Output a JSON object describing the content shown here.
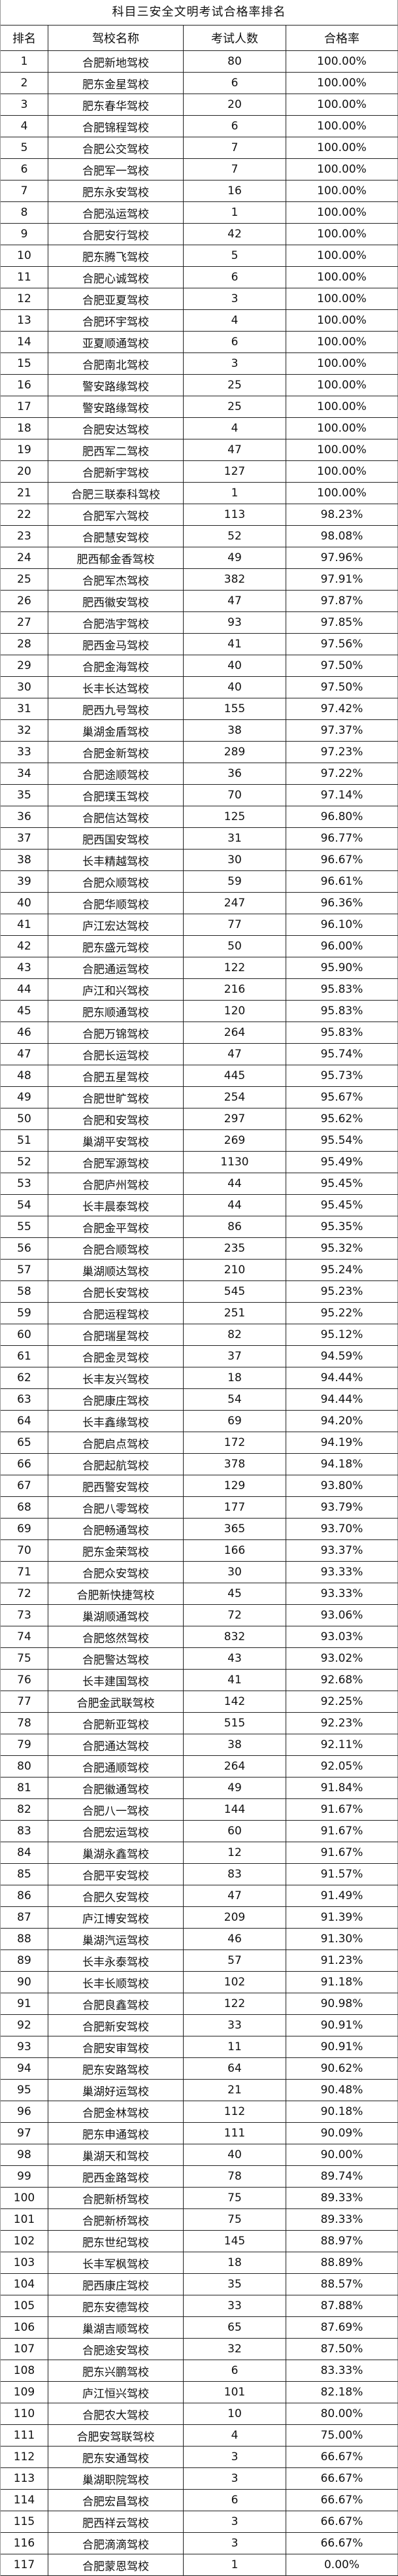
{
  "title": "科目三安全文明考试合格率排名",
  "headers": [
    "排名",
    "驾校名称",
    "考试人数",
    "合格率"
  ],
  "rows": [
    [
      "1",
      "合肥新地驾校",
      "80",
      "100.00%"
    ],
    [
      "2",
      "肥东金星驾校",
      "6",
      "100.00%"
    ],
    [
      "3",
      "肥东春华驾校",
      "20",
      "100.00%"
    ],
    [
      "4",
      "合肥锦程驾校",
      "6",
      "100.00%"
    ],
    [
      "5",
      "合肥公交驾校",
      "7",
      "100.00%"
    ],
    [
      "6",
      "合肥军一驾校",
      "7",
      "100.00%"
    ],
    [
      "7",
      "肥东永安驾校",
      "16",
      "100.00%"
    ],
    [
      "8",
      "合肥泓运驾校",
      "1",
      "100.00%"
    ],
    [
      "9",
      "合肥安行驾校",
      "42",
      "100.00%"
    ],
    [
      "10",
      "肥东腾飞驾校",
      "5",
      "100.00%"
    ],
    [
      "11",
      "合肥心诚驾校",
      "6",
      "100.00%"
    ],
    [
      "12",
      "合肥亚夏驾校",
      "3",
      "100.00%"
    ],
    [
      "13",
      "合肥环宇驾校",
      "4",
      "100.00%"
    ],
    [
      "14",
      "亚夏顺通驾校",
      "6",
      "100.00%"
    ],
    [
      "15",
      "合肥南北驾校",
      "3",
      "100.00%"
    ],
    [
      "16",
      "警安路缘驾校",
      "25",
      "100.00%"
    ],
    [
      "17",
      "警安路缘驾校",
      "25",
      "100.00%"
    ],
    [
      "18",
      "合肥安达驾校",
      "4",
      "100.00%"
    ],
    [
      "19",
      "肥西军二驾校",
      "47",
      "100.00%"
    ],
    [
      "20",
      "合肥新宇驾校",
      "127",
      "100.00%"
    ],
    [
      "21",
      "合肥三联泰科驾校",
      "1",
      "100.00%"
    ],
    [
      "22",
      "合肥军六驾校",
      "113",
      "98.23%"
    ],
    [
      "23",
      "合肥慧安驾校",
      "52",
      "98.08%"
    ],
    [
      "24",
      "肥西郁金香驾校",
      "49",
      "97.96%"
    ],
    [
      "25",
      "合肥军杰驾校",
      "382",
      "97.91%"
    ],
    [
      "26",
      "肥西徽安驾校",
      "47",
      "97.87%"
    ],
    [
      "27",
      "合肥浩宇驾校",
      "93",
      "97.85%"
    ],
    [
      "28",
      "肥西金马驾校",
      "41",
      "97.56%"
    ],
    [
      "29",
      "合肥金海驾校",
      "40",
      "97.50%"
    ],
    [
      "30",
      "长丰长达驾校",
      "40",
      "97.50%"
    ],
    [
      "31",
      "肥西九号驾校",
      "155",
      "97.42%"
    ],
    [
      "32",
      "巢湖金盾驾校",
      "38",
      "97.37%"
    ],
    [
      "33",
      "合肥金新驾校",
      "289",
      "97.23%"
    ],
    [
      "34",
      "合肥途顺驾校",
      "36",
      "97.22%"
    ],
    [
      "35",
      "合肥璞玉驾校",
      "70",
      "97.14%"
    ],
    [
      "36",
      "合肥信达驾校",
      "125",
      "96.80%"
    ],
    [
      "37",
      "肥西国安驾校",
      "31",
      "96.77%"
    ],
    [
      "38",
      "长丰精越驾校",
      "30",
      "96.67%"
    ],
    [
      "39",
      "合肥众顺驾校",
      "59",
      "96.61%"
    ],
    [
      "40",
      "合肥华顺驾校",
      "247",
      "96.36%"
    ],
    [
      "41",
      "庐江宏达驾校",
      "77",
      "96.10%"
    ],
    [
      "42",
      "肥东盛元驾校",
      "50",
      "96.00%"
    ],
    [
      "43",
      "合肥通运驾校",
      "122",
      "95.90%"
    ],
    [
      "44",
      "庐江和兴驾校",
      "216",
      "95.83%"
    ],
    [
      "45",
      "肥东顺通驾校",
      "120",
      "95.83%"
    ],
    [
      "46",
      "合肥万锦驾校",
      "264",
      "95.83%"
    ],
    [
      "47",
      "合肥长运驾校",
      "47",
      "95.74%"
    ],
    [
      "48",
      "合肥五星驾校",
      "445",
      "95.73%"
    ],
    [
      "49",
      "合肥世旷驾校",
      "254",
      "95.67%"
    ],
    [
      "50",
      "合肥和安驾校",
      "297",
      "95.62%"
    ],
    [
      "51",
      "巢湖平安驾校",
      "269",
      "95.54%"
    ],
    [
      "52",
      "合肥军源驾校",
      "1130",
      "95.49%"
    ],
    [
      "53",
      "合肥庐州驾校",
      "44",
      "95.45%"
    ],
    [
      "54",
      "长丰晨泰驾校",
      "44",
      "95.45%"
    ],
    [
      "55",
      "合肥金平驾校",
      "86",
      "95.35%"
    ],
    [
      "56",
      "合肥合顺驾校",
      "235",
      "95.32%"
    ],
    [
      "57",
      "巢湖顺达驾校",
      "210",
      "95.24%"
    ],
    [
      "58",
      "合肥长安驾校",
      "545",
      "95.23%"
    ],
    [
      "59",
      "合肥运程驾校",
      "251",
      "95.22%"
    ],
    [
      "60",
      "合肥瑞星驾校",
      "82",
      "95.12%"
    ],
    [
      "61",
      "合肥金灵驾校",
      "37",
      "94.59%"
    ],
    [
      "62",
      "长丰友兴驾校",
      "18",
      "94.44%"
    ],
    [
      "63",
      "合肥康庄驾校",
      "54",
      "94.44%"
    ],
    [
      "64",
      "长丰鑫缘驾校",
      "69",
      "94.20%"
    ],
    [
      "65",
      "合肥启点驾校",
      "172",
      "94.19%"
    ],
    [
      "66",
      "合肥起航驾校",
      "378",
      "94.18%"
    ],
    [
      "67",
      "肥西警安驾校",
      "129",
      "93.80%"
    ],
    [
      "68",
      "合肥八零驾校",
      "177",
      "93.79%"
    ],
    [
      "69",
      "合肥畅通驾校",
      "365",
      "93.70%"
    ],
    [
      "70",
      "肥东金荣驾校",
      "166",
      "93.37%"
    ],
    [
      "71",
      "合肥众安驾校",
      "30",
      "93.33%"
    ],
    [
      "72",
      "合肥新快捷驾校",
      "45",
      "93.33%"
    ],
    [
      "73",
      "巢湖顺通驾校",
      "72",
      "93.06%"
    ],
    [
      "74",
      "合肥悠然驾校",
      "832",
      "93.03%"
    ],
    [
      "75",
      "合肥警达驾校",
      "43",
      "93.02%"
    ],
    [
      "76",
      "长丰建国驾校",
      "41",
      "92.68%"
    ],
    [
      "77",
      "合肥金武联驾校",
      "142",
      "92.25%"
    ],
    [
      "78",
      "合肥新亚驾校",
      "515",
      "92.23%"
    ],
    [
      "79",
      "合肥通达驾校",
      "38",
      "92.11%"
    ],
    [
      "80",
      "合肥通顺驾校",
      "264",
      "92.05%"
    ],
    [
      "81",
      "合肥徽通驾校",
      "49",
      "91.84%"
    ],
    [
      "82",
      "合肥八一驾校",
      "144",
      "91.67%"
    ],
    [
      "83",
      "合肥宏运驾校",
      "60",
      "91.67%"
    ],
    [
      "84",
      "巢湖永鑫驾校",
      "12",
      "91.67%"
    ],
    [
      "85",
      "合肥平安驾校",
      "83",
      "91.57%"
    ],
    [
      "86",
      "合肥久安驾校",
      "47",
      "91.49%"
    ],
    [
      "87",
      "庐江博安驾校",
      "209",
      "91.39%"
    ],
    [
      "88",
      "巢湖汽运驾校",
      "46",
      "91.30%"
    ],
    [
      "89",
      "长丰永泰驾校",
      "57",
      "91.23%"
    ],
    [
      "90",
      "长丰长顺驾校",
      "102",
      "91.18%"
    ],
    [
      "91",
      "合肥良鑫驾校",
      "122",
      "90.98%"
    ],
    [
      "92",
      "合肥新安驾校",
      "33",
      "90.91%"
    ],
    [
      "93",
      "合肥安审驾校",
      "11",
      "90.91%"
    ],
    [
      "94",
      "肥东安路驾校",
      "64",
      "90.62%"
    ],
    [
      "95",
      "巢湖好运驾校",
      "21",
      "90.48%"
    ],
    [
      "96",
      "合肥金林驾校",
      "112",
      "90.18%"
    ],
    [
      "97",
      "肥东申通驾校",
      "111",
      "90.09%"
    ],
    [
      "98",
      "巢湖天和驾校",
      "40",
      "90.00%"
    ],
    [
      "99",
      "肥西金路驾校",
      "78",
      "89.74%"
    ],
    [
      "100",
      "合肥新桥驾校",
      "75",
      "89.33%"
    ],
    [
      "101",
      "合肥新桥驾校",
      "75",
      "89.33%"
    ],
    [
      "102",
      "肥东世纪驾校",
      "145",
      "88.97%"
    ],
    [
      "103",
      "长丰军枫驾校",
      "18",
      "88.89%"
    ],
    [
      "104",
      "肥西康庄驾校",
      "35",
      "88.57%"
    ],
    [
      "105",
      "肥东安德驾校",
      "33",
      "87.88%"
    ],
    [
      "106",
      "巢湖吉顺驾校",
      "65",
      "87.69%"
    ],
    [
      "107",
      "合肥途安驾校",
      "32",
      "87.50%"
    ],
    [
      "108",
      "肥东兴鹏驾校",
      "6",
      "83.33%"
    ],
    [
      "109",
      "庐江恒兴驾校",
      "101",
      "82.18%"
    ],
    [
      "110",
      "合肥农大驾校",
      "10",
      "80.00%"
    ],
    [
      "111",
      "合肥安驾联驾校",
      "4",
      "75.00%"
    ],
    [
      "112",
      "肥东安通驾校",
      "3",
      "66.67%"
    ],
    [
      "113",
      "巢湖职院驾校",
      "3",
      "66.67%"
    ],
    [
      "114",
      "合肥宏昌驾校",
      "6",
      "66.67%"
    ],
    [
      "115",
      "肥西祥云驾校",
      "3",
      "66.67%"
    ],
    [
      "116",
      "合肥滴滴驾校",
      "3",
      "66.67%"
    ],
    [
      "117",
      "合肥蒙恩驾校",
      "1",
      "0.00%"
    ]
  ]
}
